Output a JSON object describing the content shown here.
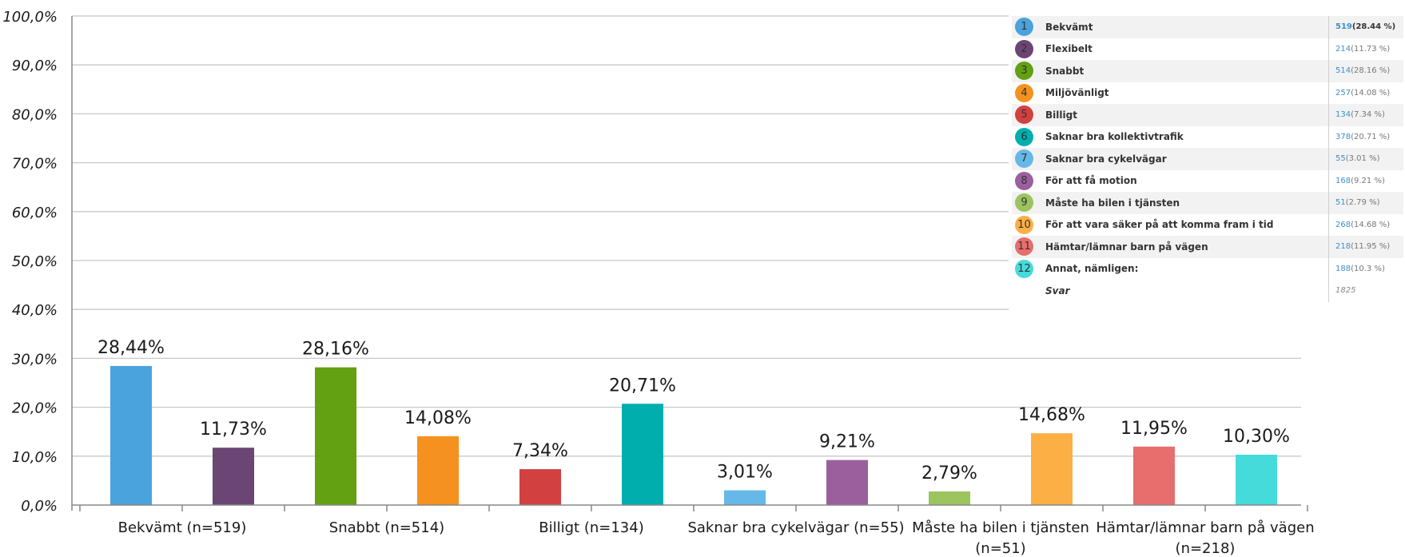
{
  "chart_data": {
    "type": "bar",
    "title": "",
    "xlabel": "",
    "ylabel": "",
    "ylim": [
      0,
      100
    ],
    "yticks": [
      "0,0%",
      "10,0%",
      "20,0%",
      "30,0%",
      "40,0%",
      "50,0%",
      "60,0%",
      "70,0%",
      "80,0%",
      "90,0%",
      "100,0%"
    ],
    "categories": [
      "Bekvämt (n=519)",
      "Flexibelt (n=214)",
      "Snabbt (n=514)",
      "Miljövänligt (n=257)",
      "Billigt (n=134)",
      "Saknar bra kollektivtrafik (n=378)",
      "Saknar bra cykelvägar (n=55)",
      "För att få motion (n=168)",
      "Måste ha bilen i tjänsten (n=51)",
      "För att vara säker på att komma fram i tid (n=268)",
      "Hämtar/lämnar barn på vägen (n=218)",
      "Annat, nämligen: (n=188)"
    ],
    "visible_x_labels": [
      {
        "index": 0,
        "lines": [
          "Bekvämt (n=519)"
        ]
      },
      {
        "index": 2,
        "lines": [
          "Snabbt (n=514)"
        ]
      },
      {
        "index": 4,
        "lines": [
          "Billigt (n=134)"
        ]
      },
      {
        "index": 6,
        "lines": [
          "Saknar bra cykelvägar (n=55)"
        ]
      },
      {
        "index": 8,
        "lines": [
          "Måste ha bilen i tjänsten",
          "(n=51)"
        ]
      },
      {
        "index": 10,
        "lines": [
          "Hämtar/lämnar barn på vägen",
          "(n=218)"
        ]
      }
    ],
    "values": [
      28.44,
      11.73,
      28.16,
      14.08,
      7.34,
      20.71,
      3.01,
      9.21,
      2.79,
      14.68,
      11.95,
      10.3
    ],
    "data_labels": [
      "28,44%",
      "11,73%",
      "28,16%",
      "14,08%",
      "7,34%",
      "20,71%",
      "3,01%",
      "9,21%",
      "2,79%",
      "14,68%",
      "11,95%",
      "10,30%"
    ],
    "colors": [
      "#4aa3dc",
      "#6b4573",
      "#63a012",
      "#f5921f",
      "#d34040",
      "#00aeae",
      "#66b8e8",
      "#9b5f9e",
      "#9cc45e",
      "#fbaf45",
      "#e86d6d",
      "#46dbdb"
    ],
    "grid": true
  },
  "legend": {
    "items": [
      {
        "num": "1",
        "label": "Bekvämt",
        "count": "519",
        "pct": "(28.44 %)",
        "color": "#4aa3dc"
      },
      {
        "num": "2",
        "label": "Flexibelt",
        "count": "214",
        "pct": "(11.73 %)",
        "color": "#6b4573"
      },
      {
        "num": "3",
        "label": "Snabbt",
        "count": "514",
        "pct": "(28.16 %)",
        "color": "#63a012"
      },
      {
        "num": "4",
        "label": "Miljövänligt",
        "count": "257",
        "pct": "(14.08 %)",
        "color": "#f5921f"
      },
      {
        "num": "5",
        "label": "Billigt",
        "count": "134",
        "pct": "(7.34 %)",
        "color": "#d34040"
      },
      {
        "num": "6",
        "label": "Saknar bra kollektivtrafik",
        "count": "378",
        "pct": "(20.71 %)",
        "color": "#00aeae"
      },
      {
        "num": "7",
        "label": "Saknar bra cykelvägar",
        "count": "55",
        "pct": "(3.01 %)",
        "color": "#66b8e8"
      },
      {
        "num": "8",
        "label": "För att få motion",
        "count": "168",
        "pct": "(9.21 %)",
        "color": "#9b5f9e"
      },
      {
        "num": "9",
        "label": "Måste ha bilen i tjänsten",
        "count": "51",
        "pct": "(2.79 %)",
        "color": "#9cc45e"
      },
      {
        "num": "10",
        "label": "För att vara säker på att komma fram i tid",
        "count": "268",
        "pct": "(14.68 %)",
        "color": "#fbaf45"
      },
      {
        "num": "11",
        "label": "Hämtar/lämnar barn på vägen",
        "count": "218",
        "pct": "(11.95 %)",
        "color": "#e86d6d"
      },
      {
        "num": "12",
        "label": "Annat, nämligen:",
        "count": "188",
        "pct": "(10.3 %)",
        "color": "#46dbdb"
      }
    ],
    "total_label": "Svar",
    "total_value": "1825"
  }
}
